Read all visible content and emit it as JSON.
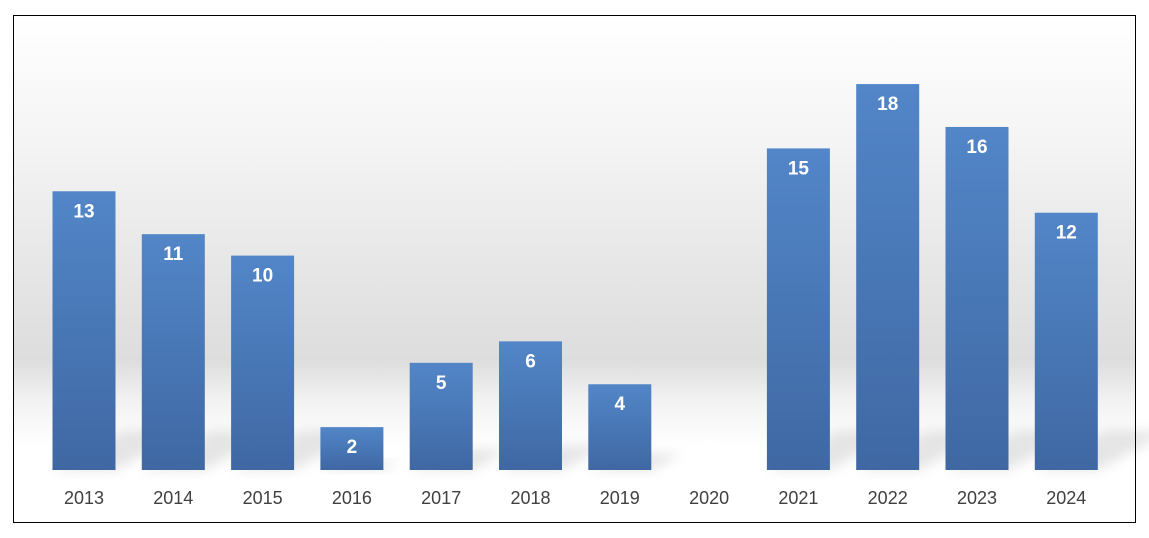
{
  "chart_data": {
    "type": "bar",
    "title": "",
    "xlabel": "",
    "ylabel": "",
    "categories": [
      "2013",
      "2014",
      "2015",
      "2016",
      "2017",
      "2018",
      "2019",
      "2020",
      "2021",
      "2022",
      "2023",
      "2024"
    ],
    "values": [
      13,
      11,
      10,
      2,
      5,
      6,
      4,
      0,
      15,
      18,
      16,
      12
    ],
    "ylim": [
      0,
      20
    ],
    "grid": false,
    "legend": "none",
    "data_labels": true,
    "colors": {
      "bar": "#4a7ab8",
      "bar_dark": "#3f68a3",
      "bar_light": "#5286c8",
      "data_label": "#ffffff",
      "tick_label": "#404040",
      "border": "#000000"
    }
  }
}
